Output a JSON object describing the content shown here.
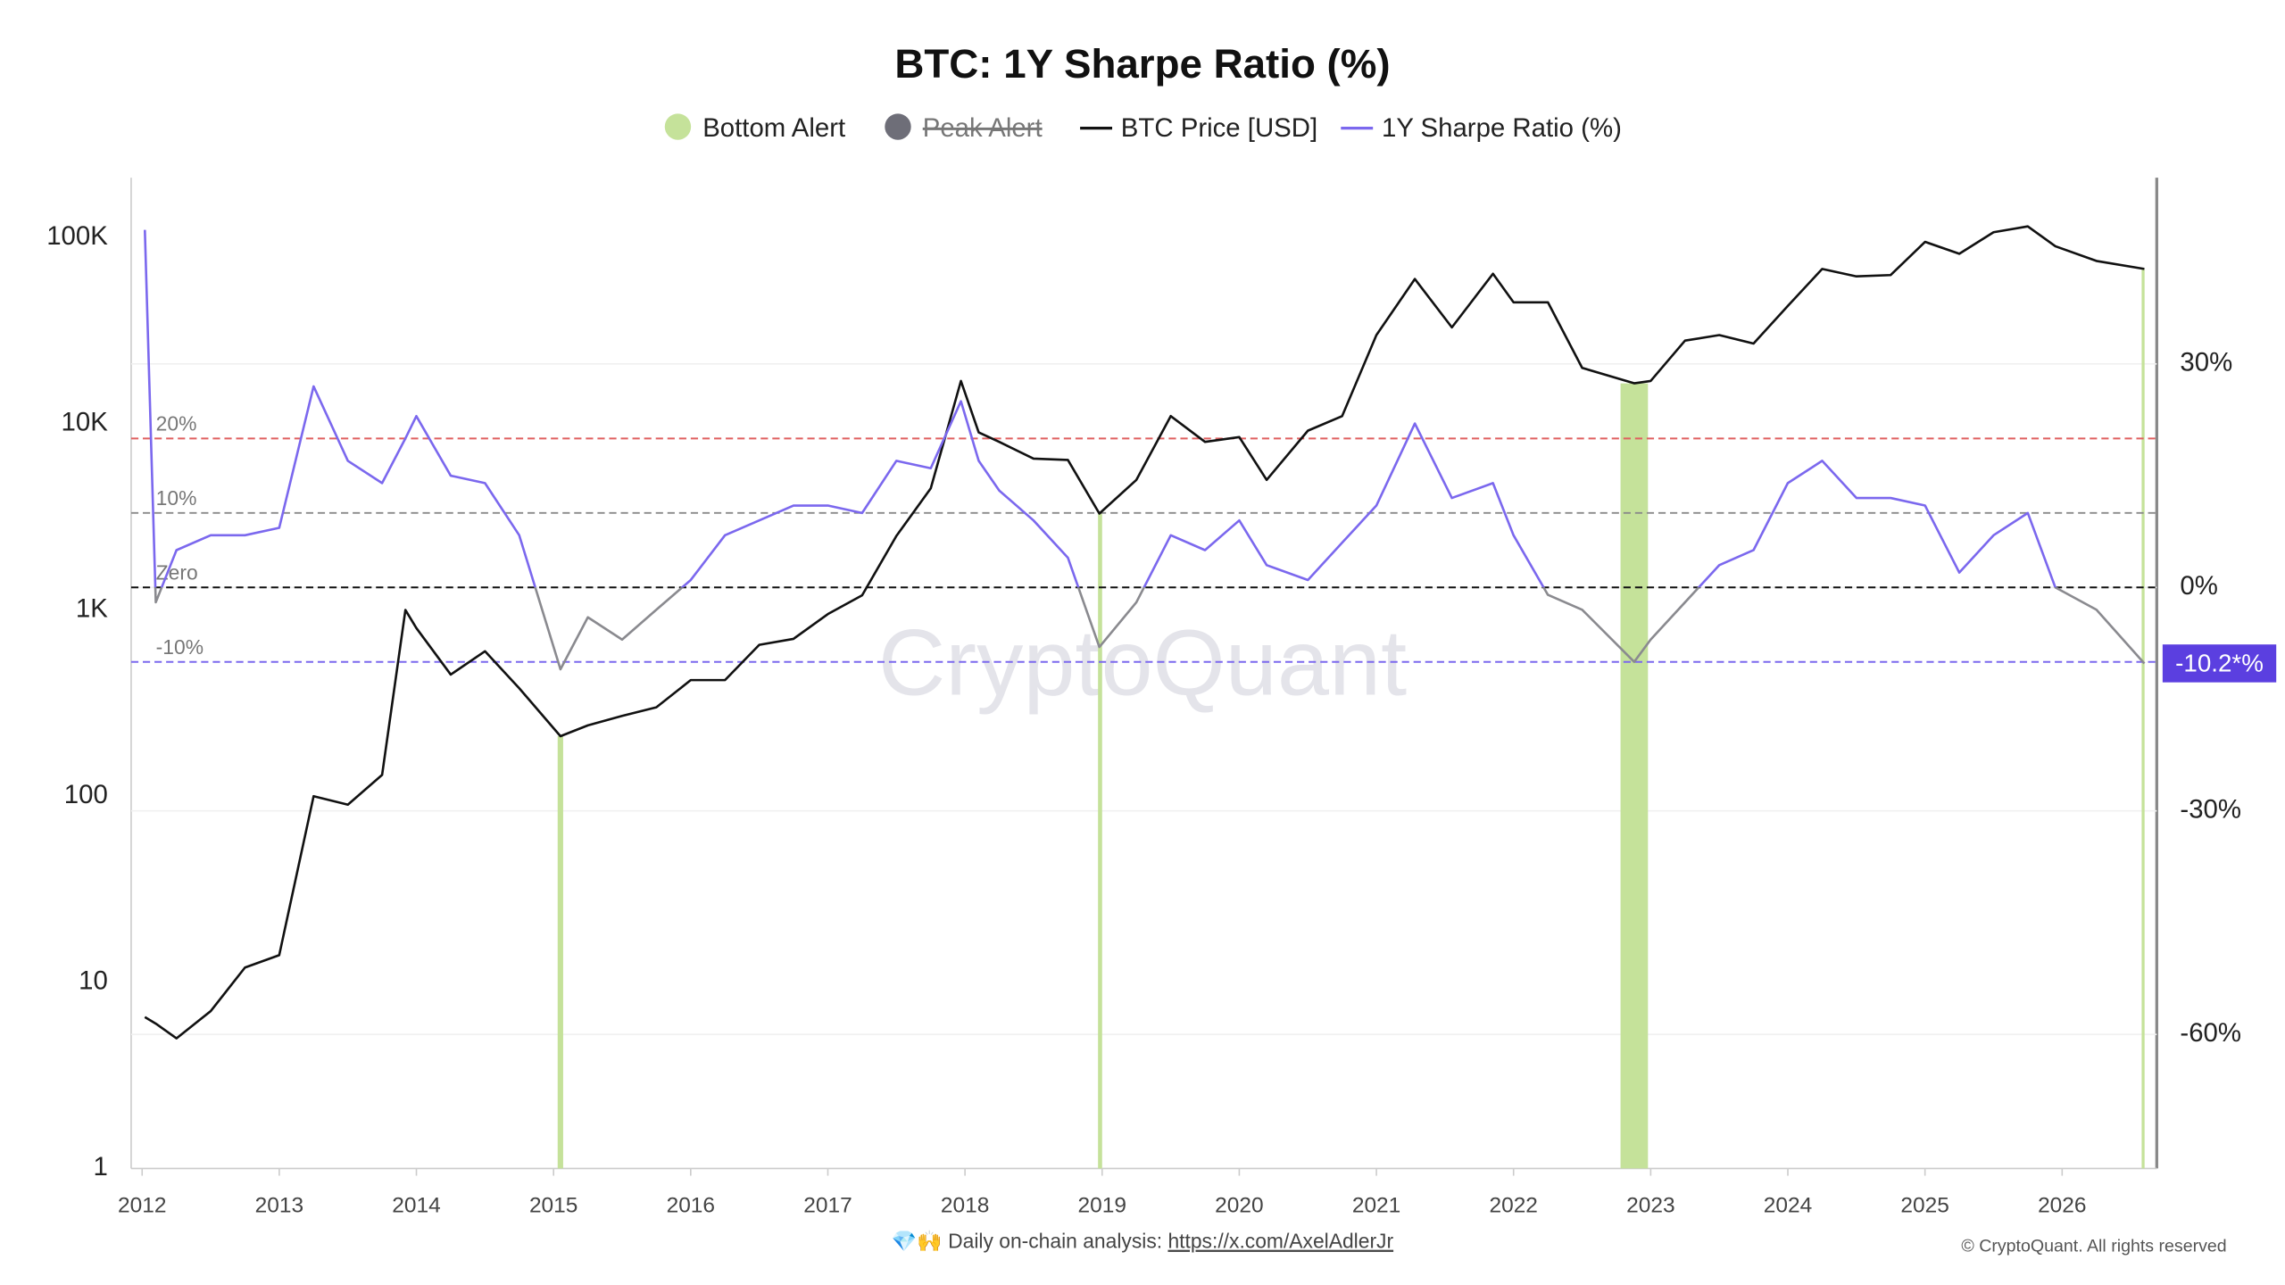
{
  "chart_data": {
    "type": "line",
    "title": "BTC: 1Y Sharpe Ratio (%)",
    "x": [
      2012.02,
      2012.1,
      2012.25,
      2012.5,
      2012.75,
      2013.0,
      2013.25,
      2013.5,
      2013.75,
      2013.92,
      2014.0,
      2014.25,
      2014.5,
      2014.75,
      2015.05,
      2015.25,
      2015.5,
      2015.75,
      2016.0,
      2016.25,
      2016.5,
      2016.75,
      2017.0,
      2017.25,
      2017.5,
      2017.75,
      2017.97,
      2018.1,
      2018.25,
      2018.5,
      2018.75,
      2018.98,
      2019.25,
      2019.5,
      2019.75,
      2020.0,
      2020.2,
      2020.5,
      2020.75,
      2021.0,
      2021.28,
      2021.55,
      2021.85,
      2022.0,
      2022.25,
      2022.5,
      2022.88,
      2023.0,
      2023.25,
      2023.5,
      2023.75,
      2024.0,
      2024.25,
      2024.5,
      2024.75,
      2025.0,
      2025.25,
      2025.5,
      2025.75,
      2025.95,
      2026.25,
      2026.6
    ],
    "series": [
      {
        "name": "BTC Price [USD]",
        "color": "#111111",
        "values": [
          6.5,
          6,
          5,
          7,
          12,
          14,
          100,
          90,
          130,
          1000,
          800,
          450,
          600,
          380,
          210,
          240,
          270,
          300,
          420,
          420,
          650,
          700,
          950,
          1200,
          2500,
          4500,
          17000,
          9000,
          8000,
          6500,
          6400,
          3300,
          5000,
          11000,
          8000,
          8500,
          5000,
          9200,
          11000,
          30000,
          60000,
          33000,
          64000,
          45000,
          45000,
          20000,
          16500,
          17000,
          28000,
          30000,
          27000,
          43000,
          68000,
          62000,
          63000,
          95000,
          82000,
          107000,
          115000,
          90000,
          75000,
          68000
        ]
      },
      {
        "name": "1Y Sharpe Ratio (%)",
        "color": "#7b68ee",
        "negative_color": "#8a8a8f",
        "axis": "y2",
        "current_label": "-10.2*%",
        "values": [
          48,
          -2,
          5,
          7,
          7,
          8,
          27,
          17,
          14,
          20,
          23,
          15,
          14,
          7,
          -11,
          -4,
          -7,
          -3,
          1,
          7,
          9,
          11,
          11,
          10,
          17,
          16,
          25,
          17,
          13,
          9,
          4,
          -8,
          -2,
          7,
          5,
          9,
          3,
          1,
          6,
          11,
          22,
          12,
          14,
          7,
          -1,
          -3,
          -10,
          -7,
          -2,
          3,
          5,
          14,
          17,
          12,
          12,
          11,
          2,
          7,
          10,
          0,
          -3,
          -10.2
        ]
      }
    ],
    "alerts": [
      {
        "name": "Bottom Alert",
        "color": "#c5e29a",
        "ranges": [
          [
            2015.03,
            2015.07
          ],
          [
            2018.97,
            2019.0
          ],
          [
            2022.78,
            2022.98
          ],
          [
            2026.58,
            2026.6
          ]
        ]
      },
      {
        "name": "Peak Alert",
        "color": "#6e6e78",
        "hidden": true,
        "ranges": []
      }
    ],
    "reference_lines": [
      {
        "value": 20,
        "label": "20%",
        "color": "#e06060"
      },
      {
        "value": 10,
        "label": "10%",
        "color": "#8a8a8a"
      },
      {
        "value": 0,
        "label": "Zero",
        "color": "#111111"
      },
      {
        "value": -10,
        "label": "-10%",
        "color": "#7b68ee"
      }
    ],
    "log_y": true,
    "xlim": [
      2011.92,
      2026.69
    ],
    "xticks": [
      2012,
      2013,
      2014,
      2015,
      2016,
      2017,
      2018,
      2019,
      2020,
      2021,
      2022,
      2023,
      2024,
      2025,
      2026
    ],
    "ylim": [
      1,
      210000
    ],
    "yticks": [
      1,
      10,
      100,
      {
        "value": 1000,
        "label": "1K"
      },
      {
        "value": 10000,
        "label": "10K"
      },
      {
        "value": 100000,
        "label": "100K"
      }
    ],
    "y2lim": [
      -78,
      55
    ],
    "y2ticks": [
      {
        "value": -60,
        "label": "-60%"
      },
      {
        "value": -30,
        "label": "-30%"
      },
      {
        "value": 0,
        "label": "0%"
      },
      {
        "value": 30,
        "label": "30%"
      }
    ],
    "watermark": "CryptoQuant",
    "footer_text": "💎🙌 Daily on-chain analysis: ",
    "footer_link": "https://x.com/AxelAdlerJr",
    "copyright": "© CryptoQuant. All rights reserved"
  }
}
